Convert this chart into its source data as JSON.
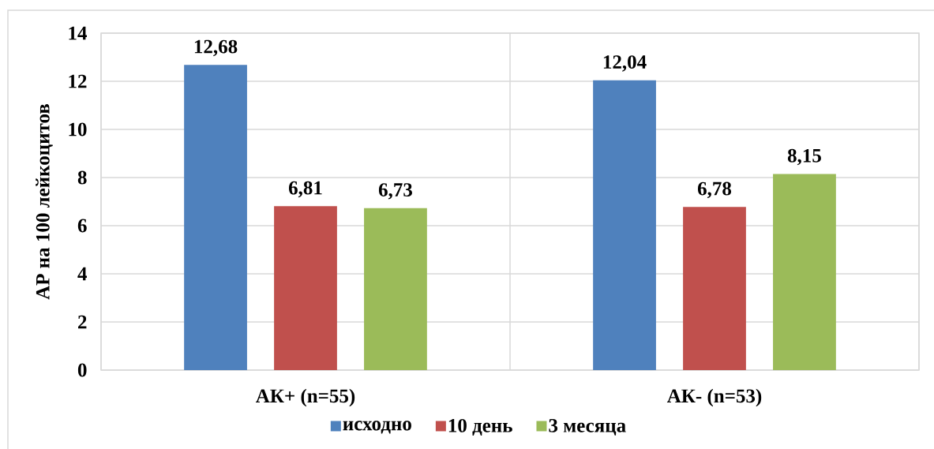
{
  "chart_data": {
    "type": "bar",
    "ylabel": "АР на 100 лейкоцитов",
    "categories": [
      "АК+ (n=55)",
      "АК- (n=53)"
    ],
    "series": [
      {
        "name": "исходно",
        "color": "#4f81bd",
        "values": [
          12.68,
          12.04
        ],
        "value_labels": [
          "12,68",
          "12,04"
        ]
      },
      {
        "name": "10 день",
        "color": "#c0504d",
        "values": [
          6.81,
          6.78
        ],
        "value_labels": [
          "6,81",
          "6,78"
        ]
      },
      {
        "name": "3 месяца",
        "color": "#9bbb59",
        "values": [
          6.73,
          8.15
        ],
        "value_labels": [
          "6,73",
          "8,15"
        ]
      }
    ],
    "ylim": [
      0,
      14
    ],
    "yticks": [
      0,
      2,
      4,
      6,
      8,
      10,
      12,
      14
    ],
    "grid": true,
    "legend": "bottom"
  }
}
